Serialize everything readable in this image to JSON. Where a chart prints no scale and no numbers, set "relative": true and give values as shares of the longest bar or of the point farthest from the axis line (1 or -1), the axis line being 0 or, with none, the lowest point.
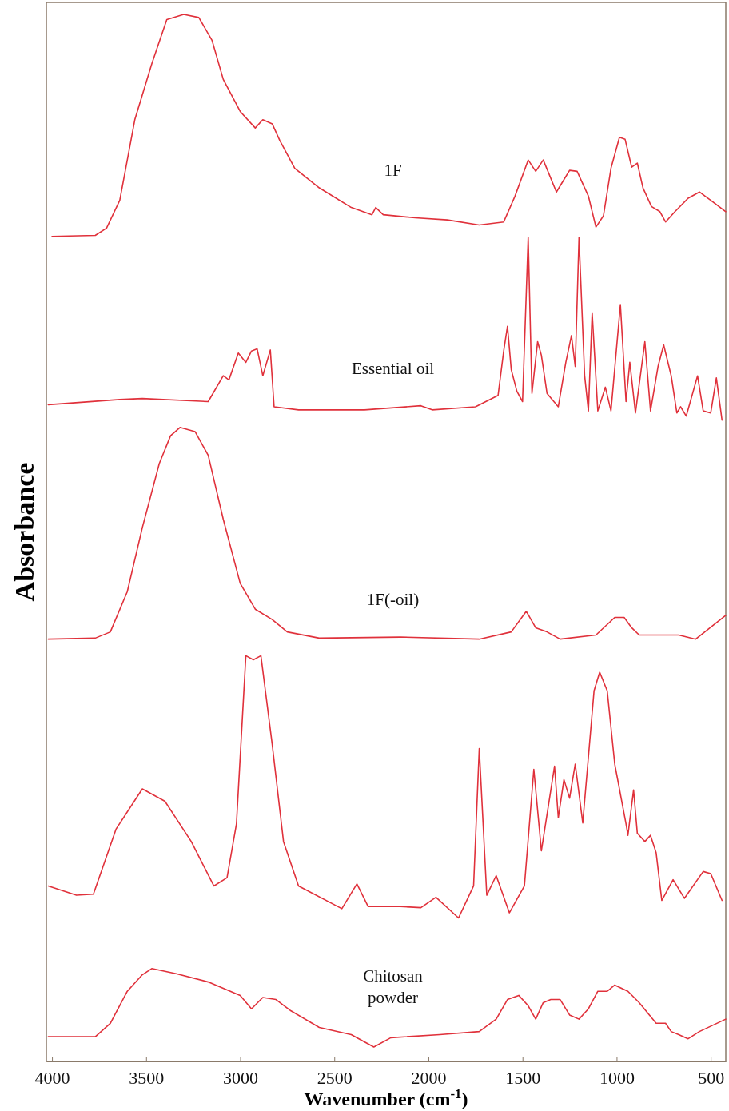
{
  "chart_data": {
    "type": "line",
    "relative": true,
    "xlabel": "Wavenumber (cm$^{-1}$)",
    "ylabel": "Absorbance",
    "xlim": [
      4030,
      420
    ],
    "xticks": [
      4000,
      3500,
      3000,
      2500,
      2000,
      1500,
      1000,
      500
    ],
    "grid": false,
    "marker": "none",
    "line_style": "solid",
    "series": [
      {
        "name": "1F",
        "color": "#e0313b",
        "x": [
          4000,
          3770,
          3710,
          3640,
          3560,
          3470,
          3390,
          3300,
          3220,
          3150,
          3090,
          3000,
          2920,
          2880,
          2830,
          2790,
          2710,
          2580,
          2410,
          2300,
          2280,
          2240,
          2070,
          1900,
          1730,
          1600,
          1540,
          1470,
          1430,
          1390,
          1320,
          1280,
          1250,
          1210,
          1150,
          1110,
          1070,
          1030,
          985,
          955,
          920,
          890,
          860,
          815,
          770,
          740,
          690,
          620,
          560,
          500,
          420
        ],
        "values": [
          0.785,
          0.786,
          0.793,
          0.82,
          0.898,
          0.952,
          0.995,
          1.0,
          0.997,
          0.975,
          0.937,
          0.906,
          0.89,
          0.898,
          0.894,
          0.878,
          0.851,
          0.832,
          0.813,
          0.806,
          0.813,
          0.806,
          0.803,
          0.801,
          0.796,
          0.799,
          0.824,
          0.859,
          0.848,
          0.859,
          0.828,
          0.84,
          0.849,
          0.848,
          0.824,
          0.794,
          0.805,
          0.851,
          0.881,
          0.879,
          0.852,
          0.856,
          0.832,
          0.814,
          0.809,
          0.799,
          0.809,
          0.822,
          0.828,
          0.82,
          0.809
        ]
      },
      {
        "name": "Essential oil",
        "color": "#e0313b",
        "x": [
          4020,
          3640,
          3520,
          3170,
          3090,
          3060,
          3010,
          2970,
          2940,
          2910,
          2880,
          2840,
          2820,
          2690,
          2340,
          2040,
          1980,
          1750,
          1630,
          1600,
          1580,
          1560,
          1530,
          1500,
          1470,
          1450,
          1420,
          1400,
          1370,
          1310,
          1270,
          1240,
          1220,
          1200,
          1170,
          1150,
          1130,
          1100,
          1060,
          1030,
          980,
          950,
          930,
          900,
          850,
          820,
          780,
          750,
          710,
          680,
          660,
          630,
          570,
          540,
          500,
          470,
          440
        ],
        "values": [
          0.622,
          0.627,
          0.628,
          0.625,
          0.65,
          0.646,
          0.672,
          0.663,
          0.674,
          0.676,
          0.65,
          0.675,
          0.62,
          0.617,
          0.617,
          0.621,
          0.617,
          0.62,
          0.631,
          0.674,
          0.698,
          0.656,
          0.635,
          0.625,
          0.784,
          0.633,
          0.683,
          0.67,
          0.633,
          0.62,
          0.663,
          0.689,
          0.659,
          0.784,
          0.65,
          0.616,
          0.711,
          0.616,
          0.639,
          0.616,
          0.719,
          0.625,
          0.663,
          0.614,
          0.683,
          0.616,
          0.659,
          0.68,
          0.65,
          0.614,
          0.62,
          0.611,
          0.65,
          0.616,
          0.614,
          0.648,
          0.607
        ]
      },
      {
        "name": "1F(-oil)",
        "color": "#e0313b",
        "x": [
          4020,
          3770,
          3690,
          3600,
          3520,
          3430,
          3370,
          3320,
          3240,
          3170,
          3090,
          3000,
          2920,
          2830,
          2750,
          2580,
          2150,
          1730,
          1560,
          1480,
          1430,
          1370,
          1300,
          1110,
          1010,
          960,
          920,
          880,
          670,
          580,
          420
        ],
        "values": [
          0.395,
          0.396,
          0.402,
          0.441,
          0.503,
          0.565,
          0.592,
          0.6,
          0.596,
          0.573,
          0.511,
          0.449,
          0.424,
          0.414,
          0.402,
          0.396,
          0.397,
          0.395,
          0.402,
          0.422,
          0.406,
          0.402,
          0.395,
          0.399,
          0.416,
          0.416,
          0.406,
          0.399,
          0.399,
          0.395,
          0.418
        ]
      },
      {
        "color": "#e0313b",
        "x": [
          4020,
          3870,
          3780,
          3660,
          3520,
          3400,
          3260,
          3140,
          3070,
          3020,
          2970,
          2930,
          2890,
          2830,
          2770,
          2690,
          2460,
          2380,
          2320,
          2150,
          2040,
          1960,
          1840,
          1760,
          1730,
          1690,
          1640,
          1570,
          1490,
          1440,
          1400,
          1330,
          1310,
          1280,
          1250,
          1220,
          1180,
          1120,
          1090,
          1050,
          1010,
          950,
          940,
          910,
          890,
          850,
          820,
          790,
          760,
          700,
          640,
          540,
          500,
          440
        ],
        "values": [
          0.156,
          0.147,
          0.148,
          0.211,
          0.25,
          0.238,
          0.199,
          0.156,
          0.164,
          0.216,
          0.379,
          0.375,
          0.379,
          0.293,
          0.199,
          0.156,
          0.134,
          0.158,
          0.136,
          0.136,
          0.135,
          0.145,
          0.125,
          0.156,
          0.289,
          0.147,
          0.166,
          0.13,
          0.156,
          0.269,
          0.19,
          0.272,
          0.222,
          0.259,
          0.241,
          0.274,
          0.217,
          0.345,
          0.363,
          0.345,
          0.274,
          0.216,
          0.205,
          0.249,
          0.207,
          0.199,
          0.205,
          0.188,
          0.142,
          0.162,
          0.144,
          0.17,
          0.168,
          0.142
        ]
      },
      {
        "name": "Chitosan powder",
        "color": "#e0313b",
        "x": [
          4020,
          3770,
          3690,
          3600,
          3520,
          3470,
          3340,
          3170,
          3000,
          2940,
          2880,
          2810,
          2730,
          2580,
          2410,
          2290,
          2200,
          1940,
          1730,
          1640,
          1580,
          1520,
          1470,
          1430,
          1390,
          1350,
          1300,
          1250,
          1200,
          1150,
          1100,
          1050,
          1010,
          940,
          880,
          790,
          740,
          710,
          670,
          620,
          560,
          420
        ],
        "values": [
          0.01,
          0.01,
          0.023,
          0.054,
          0.07,
          0.076,
          0.071,
          0.063,
          0.05,
          0.037,
          0.048,
          0.046,
          0.035,
          0.019,
          0.012,
          0,
          0.009,
          0.012,
          0.015,
          0.027,
          0.046,
          0.05,
          0.04,
          0.027,
          0.043,
          0.046,
          0.046,
          0.031,
          0.027,
          0.037,
          0.054,
          0.054,
          0.06,
          0.054,
          0.043,
          0.023,
          0.023,
          0.015,
          0.012,
          0.008,
          0.015,
          0.027
        ]
      }
    ]
  }
}
